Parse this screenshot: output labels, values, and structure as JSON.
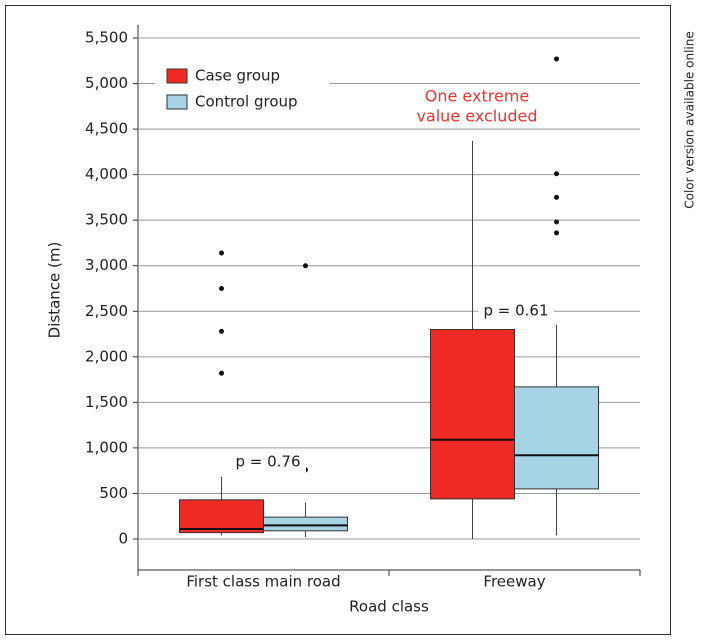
{
  "chart_data": {
    "type": "box",
    "side_note": "Color version available online",
    "x_label": "Road class",
    "y_label": "Distance (m)",
    "categories": [
      "First class main road",
      "Freeway"
    ],
    "series": [
      {
        "name": "Case group",
        "color": "#ee2a24",
        "values": [
          {
            "min": 40,
            "q1": 70,
            "median": 110,
            "q3": 430,
            "max": 680,
            "outliers": [
              1820,
              2280,
              2750,
              3140
            ]
          },
          {
            "min": 0,
            "q1": 440,
            "median": 1090,
            "q3": 2300,
            "max": 4370,
            "outliers": []
          }
        ]
      },
      {
        "name": "Control group",
        "color": "#a6d4e4",
        "values": [
          {
            "min": 20,
            "q1": 90,
            "median": 150,
            "q3": 240,
            "max": 400,
            "outliers": [
              760,
              3000
            ]
          },
          {
            "min": 40,
            "q1": 550,
            "median": 920,
            "q3": 1670,
            "max": 2350,
            "outliers": [
              3360,
              3480,
              3750,
              4010,
              5270
            ]
          }
        ]
      }
    ],
    "ylim": [
      0,
      5500
    ],
    "yticks": [
      0,
      500,
      {
        "value": 1000,
        "label": "1,000"
      },
      {
        "value": 1500,
        "label": "1,500"
      },
      {
        "value": 2000,
        "label": "2,000"
      },
      {
        "value": 2500,
        "label": "2,500"
      },
      {
        "value": 3000,
        "label": "3,000"
      },
      {
        "value": 3500,
        "label": "3,500"
      },
      {
        "value": 4000,
        "label": "4,000"
      },
      {
        "value": 4500,
        "label": "4,500"
      },
      {
        "value": 5000,
        "label": "5,000"
      },
      {
        "value": 5500,
        "label": "5,500"
      }
    ],
    "grid": true,
    "annotations": [
      {
        "text": "p = 0.76",
        "color": "#222222"
      },
      {
        "text": "p = 0.61",
        "color": "#222222"
      },
      {
        "text": [
          "One extreme",
          "value excluded"
        ],
        "color": "#ee3333"
      }
    ]
  }
}
